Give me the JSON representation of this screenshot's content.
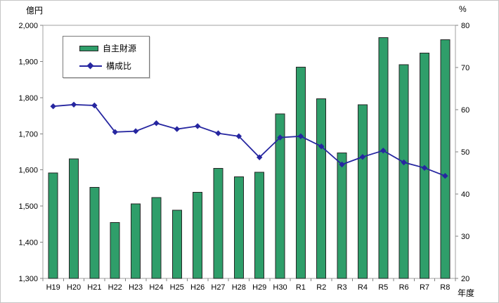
{
  "chart": {
    "has_title": false
  },
  "chart_data": {
    "type": "bar+line",
    "categories": [
      "H19",
      "H20",
      "H21",
      "H22",
      "H23",
      "H24",
      "H25",
      "H26",
      "H27",
      "H28",
      "H29",
      "H30",
      "R1",
      "R2",
      "R3",
      "R4",
      "R5",
      "R6",
      "R7",
      "R8"
    ],
    "series": [
      {
        "name": "自主財源",
        "type": "bar",
        "axis": "left",
        "values": [
          1592,
          1631,
          1552,
          1455,
          1506,
          1524,
          1489,
          1538,
          1604,
          1581,
          1594,
          1755,
          1884,
          1797,
          1647,
          1780,
          1966,
          1891,
          1923,
          1960
        ]
      },
      {
        "name": "構成比",
        "type": "line",
        "axis": "right",
        "values": [
          60.8,
          61.2,
          61.0,
          54.7,
          54.9,
          56.8,
          55.4,
          56.1,
          54.4,
          53.7,
          48.7,
          53.4,
          53.7,
          51.3,
          47.0,
          48.8,
          50.3,
          47.5,
          46.2,
          44.3
        ]
      }
    ],
    "left_axis": {
      "label": "億円",
      "min": 1300,
      "max": 2000,
      "step": 100,
      "tick_labels": [
        "2,000",
        "1,900",
        "1,800",
        "1,700",
        "1,600",
        "1,500",
        "1,400",
        "1,300"
      ]
    },
    "right_axis": {
      "label": "%",
      "min": 20,
      "max": 80,
      "step": 10,
      "tick_labels": [
        "80",
        "70",
        "60",
        "50",
        "40",
        "30",
        "20"
      ]
    },
    "x_axis_title": "年度",
    "legend_position": "top-left-inside",
    "grid": false,
    "colors": {
      "bar_fill": "#2f9e6a",
      "bar_border": "#262626",
      "line": "#2626a0",
      "plot_border": "#a0a0a0",
      "tick": "#808080",
      "text": "#000000"
    }
  }
}
